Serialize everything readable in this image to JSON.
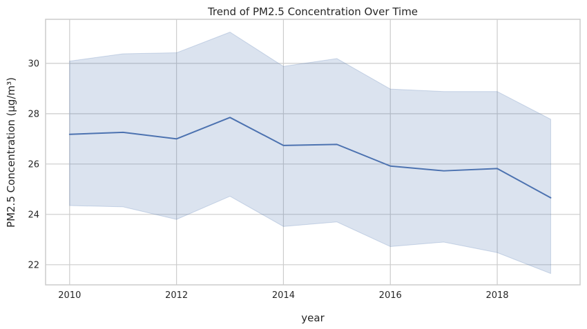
{
  "chart_data": {
    "type": "line",
    "title": "Trend of PM2.5 Concentration Over Time",
    "xlabel": "year",
    "ylabel": "PM2.5 Concentration (µg/m³)",
    "xlim": [
      2009.55,
      2019.55
    ],
    "ylim": [
      21.2,
      31.75
    ],
    "x_ticks": [
      2010,
      2012,
      2014,
      2016,
      2018
    ],
    "y_ticks": [
      22,
      24,
      26,
      28,
      30
    ],
    "grid": true,
    "series": [
      {
        "x": [
          2010,
          2011,
          2012,
          2013,
          2014,
          2015,
          2016,
          2017,
          2018,
          2019
        ],
        "values": [
          27.18,
          27.26,
          27.0,
          27.85,
          26.74,
          26.78,
          25.92,
          25.73,
          25.82,
          24.66
        ],
        "ci_lower": [
          24.35,
          24.3,
          23.8,
          24.72,
          23.52,
          23.7,
          22.72,
          22.9,
          22.48,
          21.65
        ],
        "ci_upper": [
          30.09,
          30.38,
          30.42,
          31.24,
          29.88,
          30.19,
          28.98,
          28.88,
          28.88,
          27.78
        ]
      }
    ],
    "colors": {
      "line": "#4c72b0",
      "band": "#4c72b0",
      "grid": "#cccccc",
      "frame": "#cccccc"
    }
  }
}
